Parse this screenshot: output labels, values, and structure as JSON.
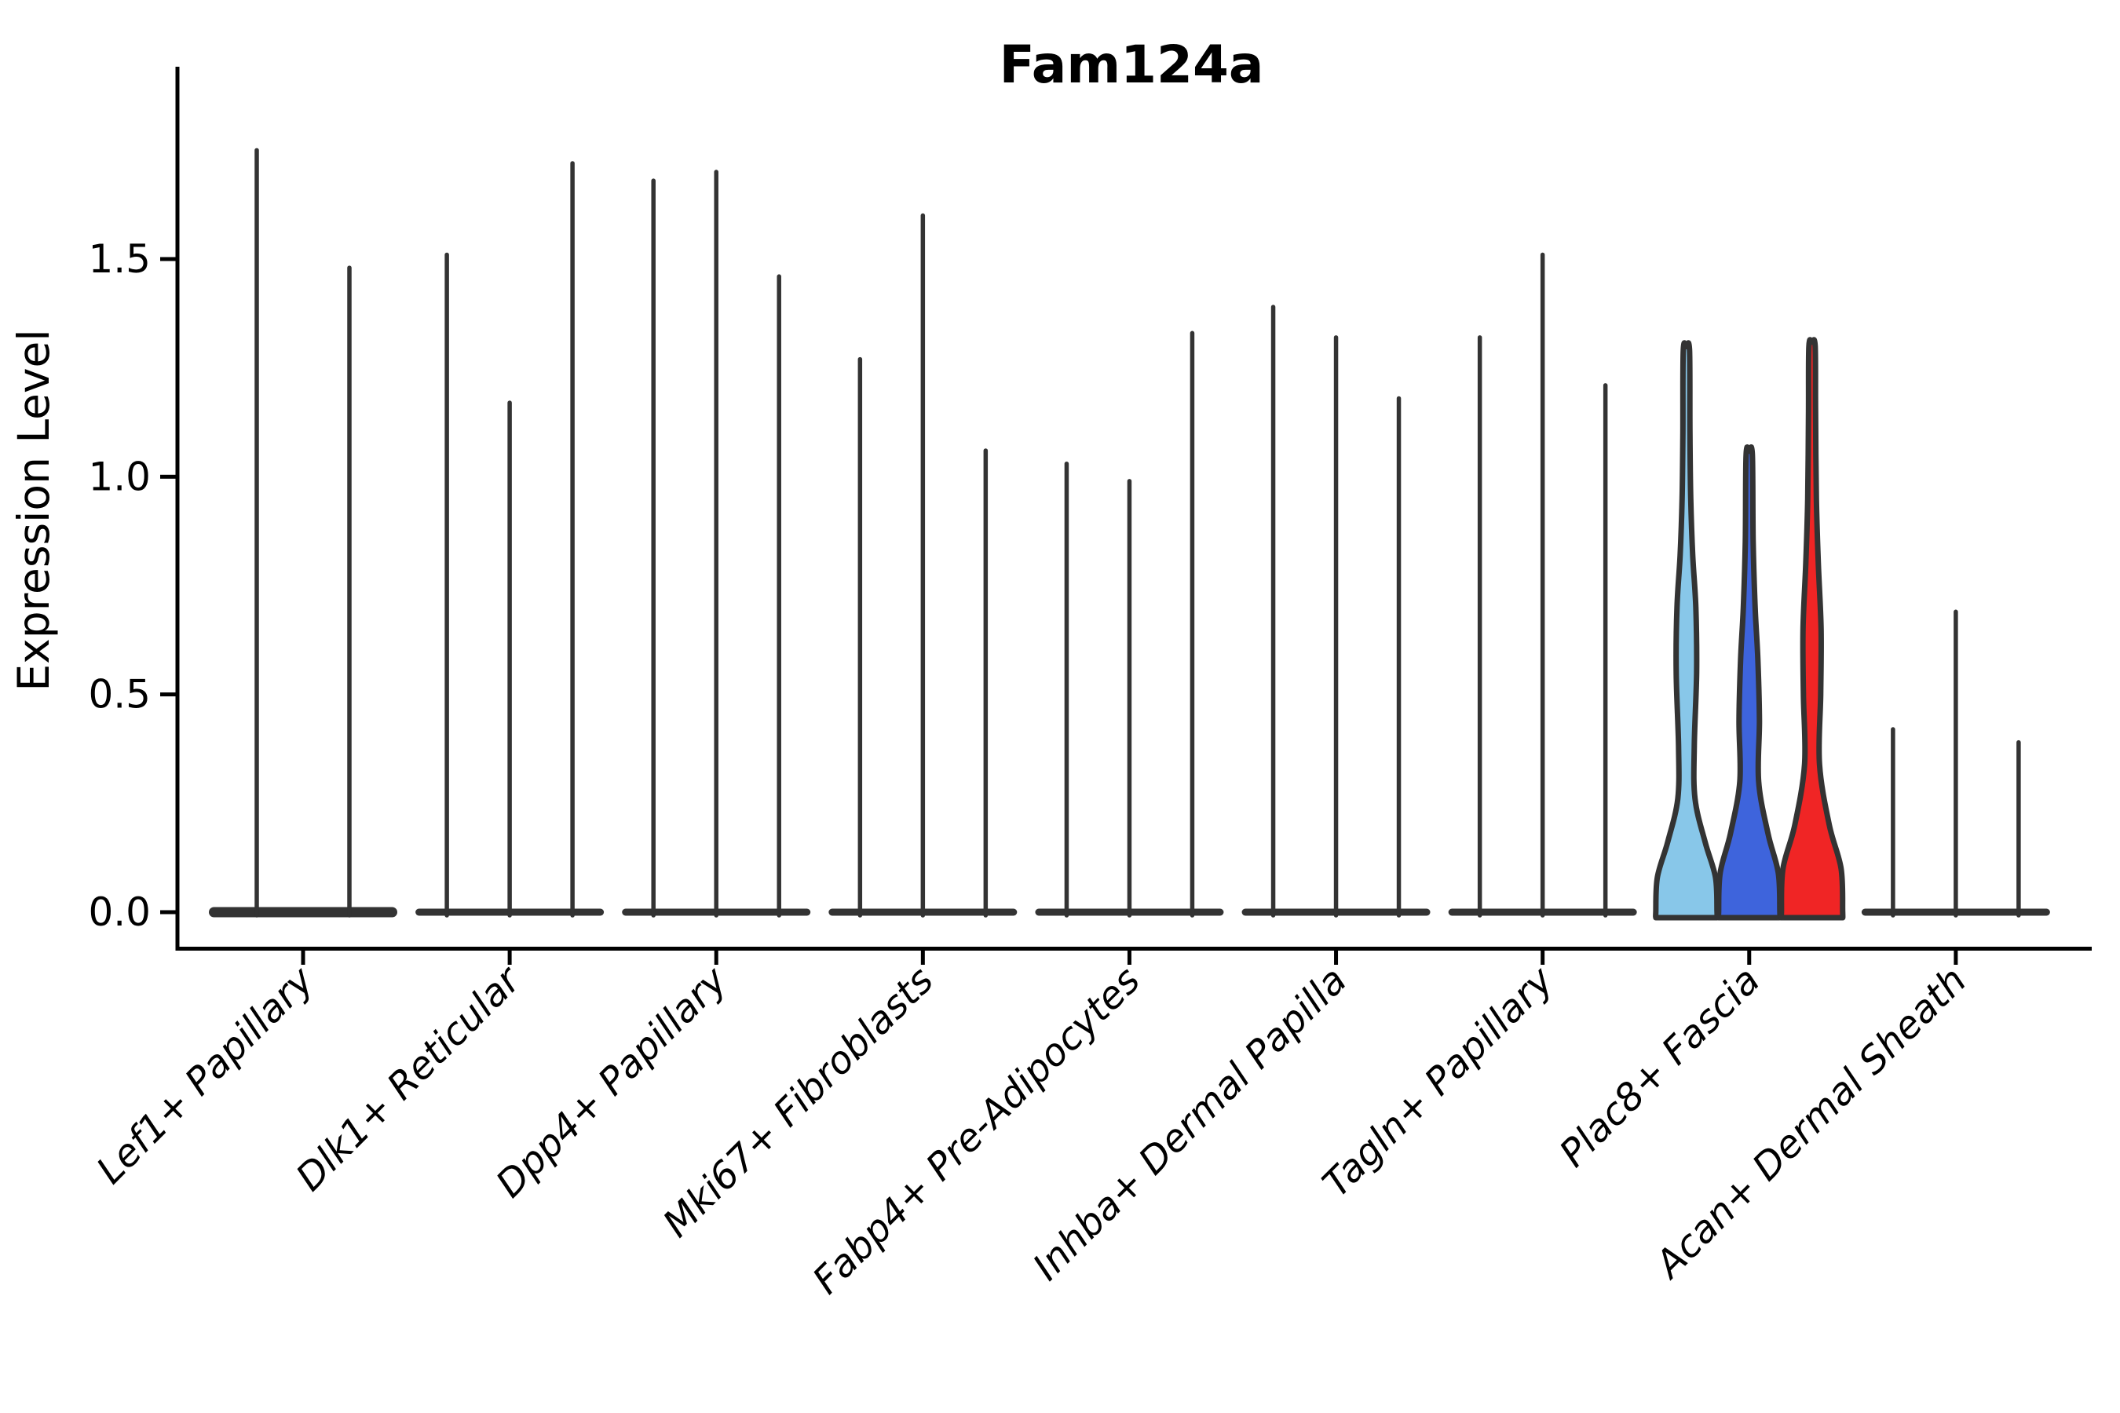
{
  "title": "Fam124a",
  "axes": {
    "ylabel": "Expression Level",
    "ytick_labels": [
      "0.0",
      "0.5",
      "1.0",
      "1.5"
    ],
    "ytick_values": [
      0.0,
      0.5,
      1.0,
      1.5
    ]
  },
  "colors": {
    "violin_outline": "#333333",
    "axis": "#000000",
    "highlight_lightblue": "#88C7E9",
    "highlight_blue": "#3E64DC",
    "highlight_red": "#F02525"
  },
  "chart_data": {
    "type": "violin",
    "title": "Fam124a",
    "ylabel": "Expression Level",
    "ylim": [
      -0.085,
      1.94
    ],
    "yticks": [
      0.0,
      0.5,
      1.0,
      1.5
    ],
    "grid": false,
    "legend": false,
    "categories": [
      "Lef1+ Papillary",
      "Dlk1+ Reticular",
      "Dpp4+ Papillary",
      "Mki67+ Fibroblasts",
      "Fabp4+ Pre-Adipocytes",
      "Inhba+ Dermal Papilla",
      "Tagln+ Papillary",
      "Plac8+ Fascia",
      "Acan+ Dermal Sheath"
    ],
    "groups": [
      {
        "label": "Lef1+ Papillary",
        "violins": [
          {
            "max": 1.75
          },
          {
            "max": 1.48
          }
        ]
      },
      {
        "label": "Dlk1+ Reticular",
        "violins": [
          {
            "max": 1.51
          },
          {
            "max": 1.17
          },
          {
            "max": 1.72
          }
        ]
      },
      {
        "label": "Dpp4+ Papillary",
        "violins": [
          {
            "max": 1.68
          },
          {
            "max": 1.7
          },
          {
            "max": 1.46
          }
        ]
      },
      {
        "label": "Mki67+ Fibroblasts",
        "violins": [
          {
            "max": 1.27
          },
          {
            "max": 1.6
          },
          {
            "max": 1.06
          }
        ]
      },
      {
        "label": "Fabp4+ Pre-Adipocytes",
        "violins": [
          {
            "max": 1.03
          },
          {
            "max": 0.99
          },
          {
            "max": 1.33
          }
        ]
      },
      {
        "label": "Inhba+ Dermal Papilla",
        "violins": [
          {
            "max": 1.39
          },
          {
            "max": 1.32
          },
          {
            "max": 1.18
          }
        ]
      },
      {
        "label": "Tagln+ Papillary",
        "violins": [
          {
            "max": 1.32
          },
          {
            "max": 1.51
          },
          {
            "max": 1.21
          }
        ]
      },
      {
        "label": "Plac8+ Fascia",
        "violins": [
          {
            "max": 1.29,
            "fill": "#88C7E9",
            "profile": [
              [
                0,
                39
              ],
              [
                0.08,
                37
              ],
              [
                0.16,
                24
              ],
              [
                0.26,
                11
              ],
              [
                0.38,
                10
              ],
              [
                0.55,
                13
              ],
              [
                0.7,
                12
              ],
              [
                0.82,
                8
              ],
              [
                0.95,
                5.5
              ],
              [
                1.1,
                4.5
              ],
              [
                1.29,
                4
              ]
            ]
          },
          {
            "max": 1.05,
            "fill": "#3E64DC",
            "profile": [
              [
                0,
                39
              ],
              [
                0.09,
                37
              ],
              [
                0.18,
                24
              ],
              [
                0.3,
                12
              ],
              [
                0.44,
                13
              ],
              [
                0.58,
                11
              ],
              [
                0.7,
                7.5
              ],
              [
                0.85,
                5
              ],
              [
                1.05,
                4
              ]
            ]
          },
          {
            "max": 1.3,
            "fill": "#F02525",
            "profile": [
              [
                0,
                39
              ],
              [
                0.1,
                37
              ],
              [
                0.2,
                22
              ],
              [
                0.34,
                9.5
              ],
              [
                0.5,
                11
              ],
              [
                0.65,
                11.5
              ],
              [
                0.8,
                8
              ],
              [
                0.95,
                5.5
              ],
              [
                1.15,
                4.5
              ],
              [
                1.3,
                4
              ]
            ]
          }
        ]
      },
      {
        "label": "Acan+ Dermal Sheath",
        "violins": [
          {
            "max": 0.42
          },
          {
            "max": 0.69
          },
          {
            "max": 0.39
          }
        ]
      }
    ]
  }
}
